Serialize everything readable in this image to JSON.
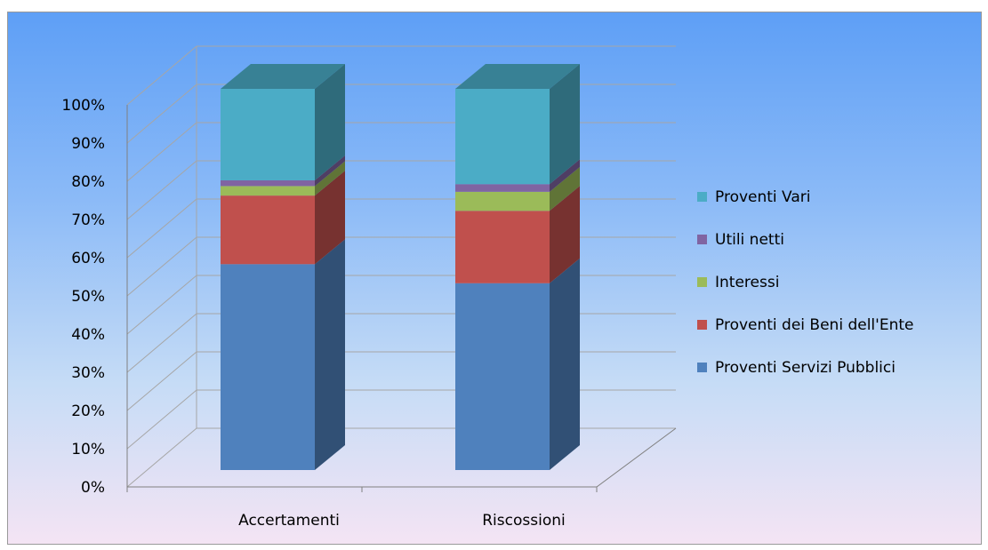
{
  "chart_data": {
    "type": "bar",
    "subtype": "stacked-percent-3d",
    "title": "",
    "xlabel": "",
    "ylabel": "",
    "ylim": [
      0,
      100
    ],
    "yticks": [
      "0%",
      "10%",
      "20%",
      "30%",
      "40%",
      "50%",
      "60%",
      "70%",
      "80%",
      "90%",
      "100%"
    ],
    "categories": [
      "Accertamenti",
      "Riscossioni"
    ],
    "grid": true,
    "legend_position": "right",
    "series": [
      {
        "name": "Proventi Servizi Pubblici",
        "values": [
          54,
          49
        ],
        "color": "#4f81bd"
      },
      {
        "name": "Proventi dei Beni dell'Ente",
        "values": [
          18,
          19
        ],
        "color": "#c0504d"
      },
      {
        "name": "Interessi",
        "values": [
          2.5,
          5
        ],
        "color": "#9bbb59"
      },
      {
        "name": "Utili netti",
        "values": [
          1.5,
          2
        ],
        "color": "#8064a2"
      },
      {
        "name": "Proventi Vari",
        "values": [
          24,
          25
        ],
        "color": "#4bacc6"
      }
    ]
  }
}
